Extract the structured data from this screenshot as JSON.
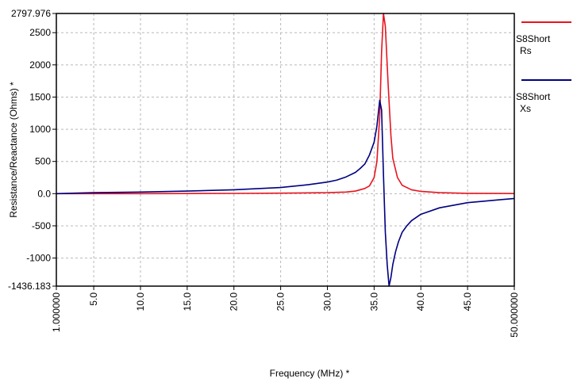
{
  "chart_data": {
    "type": "line",
    "xlabel": "Frequency (MHz) *",
    "ylabel": "Resistance/Reactance (Ohms) *",
    "xlim": [
      1.0,
      50.0
    ],
    "ylim": [
      -1436.183,
      2797.976
    ],
    "x_ticks": [
      1.0,
      5,
      10,
      15,
      20,
      25,
      30,
      35,
      40,
      45,
      50.0
    ],
    "x_tick_labels": [
      "1.000000",
      "5.0",
      "10.0",
      "15.0",
      "20.0",
      "25.0",
      "30.0",
      "35.0",
      "40.0",
      "45.0",
      "50.000000"
    ],
    "y_ticks": [
      2797.976,
      2500,
      2000,
      1500,
      1000,
      500,
      0,
      -500,
      -1000,
      -1436.183
    ],
    "y_tick_labels": [
      "2797.976",
      "2500",
      "2000",
      "1500",
      "1000",
      "500",
      "0.0",
      "-500",
      "-1000",
      "-1436.183"
    ],
    "grid": true,
    "legend_position": "right",
    "series": [
      {
        "name": "S8Short Rs",
        "legend_lines": [
          "S8Short",
          "Rs"
        ],
        "color": "#e8141e",
        "x": [
          1,
          5,
          10,
          15,
          20,
          25,
          30,
          32,
          33,
          34,
          34.5,
          35,
          35.3,
          35.6,
          35.8,
          36.0,
          36.2,
          36.5,
          36.8,
          37.0,
          37.5,
          38,
          39,
          40,
          42,
          45,
          50
        ],
        "y": [
          0,
          0,
          0,
          2,
          4,
          8,
          15,
          25,
          40,
          80,
          120,
          250,
          500,
          1200,
          2200,
          2797.976,
          2600,
          1700,
          900,
          550,
          250,
          130,
          60,
          35,
          15,
          5,
          2
        ]
      },
      {
        "name": "S8Short Xs",
        "legend_lines": [
          "S8Short",
          "Xs"
        ],
        "color": "#000080",
        "x": [
          1,
          5,
          10,
          15,
          20,
          25,
          28,
          30,
          31,
          32,
          33,
          33.5,
          34,
          34.5,
          35,
          35.3,
          35.6,
          35.8,
          36.0,
          36.2,
          36.4,
          36.6,
          36.8,
          37.0,
          37.3,
          37.6,
          38,
          38.5,
          39,
          40,
          42,
          45,
          50
        ],
        "y": [
          0,
          15,
          25,
          40,
          60,
          95,
          140,
          180,
          210,
          260,
          330,
          390,
          460,
          600,
          800,
          1050,
          1450,
          1300,
          300,
          -600,
          -1100,
          -1436.183,
          -1300,
          -1100,
          -900,
          -750,
          -600,
          -500,
          -420,
          -320,
          -220,
          -140,
          -75
        ]
      }
    ]
  }
}
